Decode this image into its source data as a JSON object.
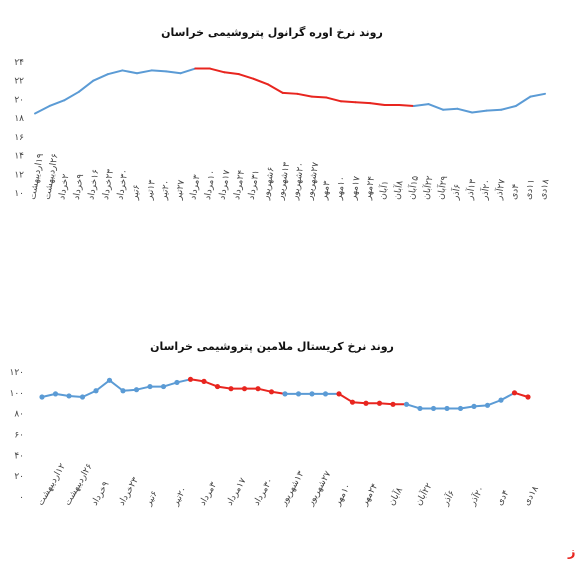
{
  "watermark": "بورس نیوز",
  "chart_data": [
    {
      "type": "line",
      "title": "روند نرخ اوره گرانول پتروشیمی خراسان",
      "categories": [
        "۱۹اردیبهشت",
        "۲۶اردیبهشت",
        "۲خرداد",
        "۹خرداد",
        "۱۶خرداد",
        "۲۳خرداد",
        "۳۰خرداد",
        "۶تیر",
        "۱۳تیر",
        "۲۰تیر",
        "۲۷تیر",
        "۳مرداد",
        "۱۰مرداد",
        "۱۷مرداد",
        "۲۴مرداد",
        "۳۱مرداد",
        "۶شهریور",
        "۱۳شهریور",
        "۲۰شهریور",
        "۲۷شهریور",
        "۳مهر",
        "۱۰مهر",
        "۱۷مهر",
        "۲۴مهر",
        "۱آبان",
        "۸آبان",
        "۱۵آبان",
        "۲۲آبان",
        "۲۹آبان",
        "۶آذر",
        "۱۳آذر",
        "۲۰آذر",
        "۲۷آذر",
        "۴دی",
        "۱۱دی",
        "۱۸دی"
      ],
      "values": [
        18.5,
        19.3,
        19.9,
        20.8,
        22.0,
        22.7,
        23.1,
        22.8,
        23.1,
        23.0,
        22.8,
        23.3,
        23.3,
        22.9,
        22.7,
        22.2,
        21.6,
        20.7,
        20.6,
        20.3,
        20.2,
        19.8,
        19.7,
        19.6,
        19.4,
        19.4,
        19.3,
        19.5,
        18.9,
        19.0,
        18.6,
        18.8,
        18.9,
        19.3,
        20.3,
        20.6
      ],
      "segment_colors": [
        "#5b9bd5",
        "#5b9bd5",
        "#5b9bd5",
        "#5b9bd5",
        "#5b9bd5",
        "#5b9bd5",
        "#5b9bd5",
        "#5b9bd5",
        "#5b9bd5",
        "#5b9bd5",
        "#5b9bd5",
        "#e8251f",
        "#e8251f",
        "#e8251f",
        "#e8251f",
        "#e8251f",
        "#e8251f",
        "#e8251f",
        "#e8251f",
        "#e8251f",
        "#e8251f",
        "#e8251f",
        "#e8251f",
        "#e8251f",
        "#e8251f",
        "#e8251f",
        "#5b9bd5",
        "#5b9bd5",
        "#5b9bd5",
        "#5b9bd5",
        "#5b9bd5",
        "#5b9bd5",
        "#5b9bd5",
        "#5b9bd5",
        "#5b9bd5"
      ],
      "markers": false,
      "ylim": [
        10,
        24
      ],
      "yticks": [
        {
          "value": 10,
          "label": "۱۰"
        },
        {
          "value": 12,
          "label": "۱۲"
        },
        {
          "value": 14,
          "label": "۱۴"
        },
        {
          "value": 16,
          "label": "۱۶"
        },
        {
          "value": 18,
          "label": "۱۸"
        },
        {
          "value": 20,
          "label": "۲۰"
        },
        {
          "value": 22,
          "label": "۲۲"
        },
        {
          "value": 24,
          "label": "۲۴"
        }
      ]
    },
    {
      "type": "line",
      "title": "روند نرخ کریستال ملامین پتروشیمی خراسان",
      "categories": [
        "۱۲اردیبهشت",
        null,
        "۲۶اردیبهشت",
        null,
        "۹خرداد",
        null,
        "۲۳خرداد",
        null,
        "۶تیر",
        null,
        "۲۰تیر",
        null,
        "۳مرداد",
        null,
        "۱۷مرداد",
        null,
        "۳۰مرداد",
        null,
        "۱۳شهریور",
        null,
        "۲۷شهریور",
        null,
        "۱۰مهر",
        null,
        "۲۴مهر",
        null,
        "۸آبان",
        null,
        "۲۲آبان",
        null,
        "۶آذر",
        null,
        "۲۰آذر",
        null,
        "۴دی",
        null,
        "۱۸دی"
      ],
      "values": [
        96,
        99,
        97,
        96,
        102,
        112,
        102,
        103,
        106,
        106,
        110,
        113,
        111,
        106,
        104,
        104,
        104,
        101,
        99,
        99,
        99,
        99,
        99,
        91,
        90,
        90,
        89,
        89,
        85,
        85,
        85,
        85,
        87,
        88,
        93,
        100,
        96
      ],
      "segment_colors": [
        "#5b9bd5",
        "#5b9bd5",
        "#5b9bd5",
        "#5b9bd5",
        "#5b9bd5",
        "#5b9bd5",
        "#5b9bd5",
        "#5b9bd5",
        "#5b9bd5",
        "#5b9bd5",
        "#5b9bd5",
        "#e8251f",
        "#e8251f",
        "#e8251f",
        "#e8251f",
        "#e8251f",
        "#e8251f",
        "#e8251f",
        "#5b9bd5",
        "#5b9bd5",
        "#5b9bd5",
        "#5b9bd5",
        "#e8251f",
        "#e8251f",
        "#e8251f",
        "#e8251f",
        "#e8251f",
        "#5b9bd5",
        "#5b9bd5",
        "#5b9bd5",
        "#5b9bd5",
        "#5b9bd5",
        "#5b9bd5",
        "#5b9bd5",
        "#5b9bd5",
        "#e8251f"
      ],
      "markers": true,
      "ylim": [
        0,
        120
      ],
      "yticks": [
        {
          "value": 0,
          "label": "۰"
        },
        {
          "value": 20,
          "label": "۲۰"
        },
        {
          "value": 40,
          "label": "۴۰"
        },
        {
          "value": 60,
          "label": "۶۰"
        },
        {
          "value": 80,
          "label": "۸۰"
        },
        {
          "value": 100,
          "label": "۱۰۰"
        },
        {
          "value": 120,
          "label": "۱۲۰"
        }
      ]
    }
  ]
}
